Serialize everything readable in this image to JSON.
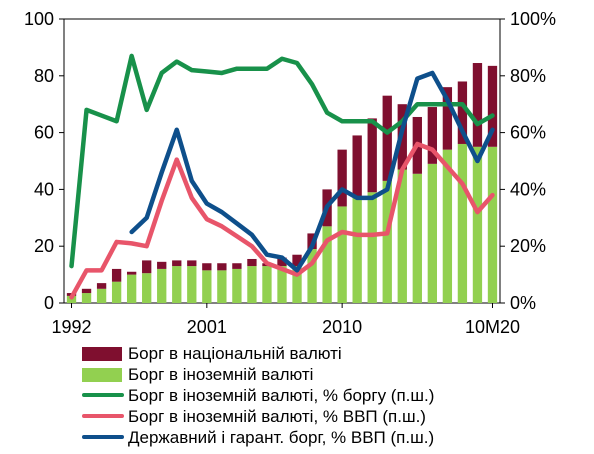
{
  "chart_data": {
    "type": "bar+line",
    "title": "",
    "xlabel": "",
    "ylabel": "",
    "ylim": [
      0,
      100
    ],
    "y2lim": [
      0,
      1.0
    ],
    "left_ticks": [
      "0",
      "20",
      "40",
      "60",
      "80",
      "100"
    ],
    "right_ticks": [
      "0%",
      "20%",
      "40%",
      "60%",
      "80%",
      "100%"
    ],
    "x_tick_labels": [
      {
        "label": "1992",
        "index": 0
      },
      {
        "label": "2001",
        "index": 9
      },
      {
        "label": "2010",
        "index": 18
      },
      {
        "label": "10M20",
        "index": 28
      }
    ],
    "categories": [
      "1992",
      "1993",
      "1994",
      "1995",
      "1996",
      "1997",
      "1998",
      "1999",
      "2000",
      "2001",
      "2002",
      "2003",
      "2004",
      "2005",
      "2006",
      "2007",
      "2008",
      "2009",
      "2010",
      "2011",
      "2012",
      "2013",
      "2014",
      "2015",
      "2016",
      "2017",
      "2018",
      "2019",
      "10M20"
    ],
    "stacked_bars": [
      {
        "name": "Борг в іноземній валюті",
        "color": "#92D050",
        "values": [
          2.5,
          3.5,
          5,
          7.5,
          10,
          10.5,
          12,
          13,
          13,
          11.5,
          11.5,
          12,
          13,
          13,
          13,
          13,
          19,
          27,
          34,
          37,
          39,
          43,
          47,
          45.5,
          49,
          54,
          56,
          55,
          55
        ]
      },
      {
        "name": "Борг в національній валюті",
        "color": "#7F0F2F",
        "values": [
          1,
          1.5,
          2,
          4.5,
          1,
          4.5,
          2.5,
          2,
          2,
          2.5,
          2.5,
          2,
          2.5,
          1,
          3,
          4,
          5.5,
          13,
          20,
          22,
          26,
          30,
          23,
          20,
          20,
          22,
          22,
          29.5,
          28.5
        ]
      }
    ],
    "lines": [
      {
        "name": "Борг в іноземній валюті, % боргу (п.ш.)",
        "color": "#18914A",
        "axis": "right",
        "values": [
          0.13,
          0.68,
          0.66,
          0.64,
          0.87,
          0.68,
          0.81,
          0.85,
          0.82,
          0.815,
          0.81,
          0.825,
          0.825,
          0.825,
          0.86,
          0.845,
          0.77,
          0.67,
          0.64,
          0.64,
          0.64,
          0.6,
          0.64,
          0.7,
          0.7,
          0.7,
          0.7,
          0.63,
          0.66
        ]
      },
      {
        "name": "Борг в іноземній валюті, % ВВП (п.ш.)",
        "color": "#E8556A",
        "axis": "right",
        "values": [
          0.02,
          0.115,
          0.115,
          0.215,
          0.21,
          0.2,
          0.36,
          0.505,
          0.37,
          0.295,
          0.27,
          0.235,
          0.2,
          0.14,
          0.12,
          0.1,
          0.14,
          0.22,
          0.25,
          0.24,
          0.24,
          0.245,
          0.47,
          0.56,
          0.54,
          0.48,
          0.42,
          0.32,
          0.38
        ]
      },
      {
        "name": "Державний і гарант. борг, % ВВП (п.ш.)",
        "color": "#0E4F8B",
        "axis": "right",
        "values": [
          null,
          null,
          null,
          null,
          0.25,
          0.3,
          0.46,
          0.61,
          0.43,
          0.35,
          0.32,
          0.28,
          0.24,
          0.17,
          0.16,
          0.115,
          0.2,
          0.34,
          0.4,
          0.37,
          0.37,
          0.4,
          0.61,
          0.79,
          0.81,
          0.715,
          0.605,
          0.5,
          0.61
        ]
      }
    ],
    "legend_order": [
      "Борг в національній валюті",
      "Борг в іноземній валюті",
      "Борг в іноземній валюті, % боргу (п.ш.)",
      "Борг в іноземній валюті, % ВВП (п.ш.)",
      "Державний і гарант. борг, % ВВП (п.ш.)"
    ],
    "legend_placement": "bottom",
    "grid": false
  }
}
